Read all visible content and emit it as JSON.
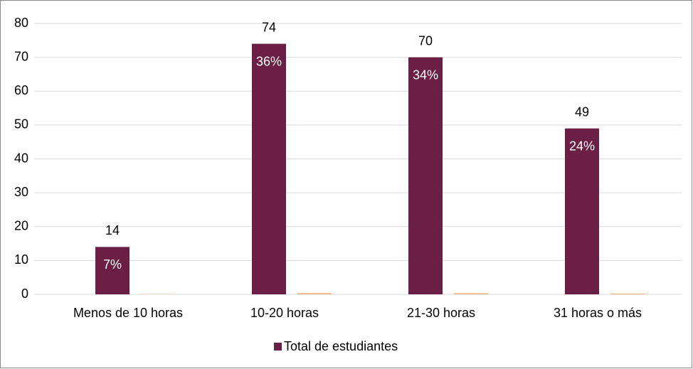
{
  "chart_data": {
    "type": "bar",
    "categories": [
      "Menos de 10 horas",
      "10-20 horas",
      "21-30 horas",
      "31 horas o más"
    ],
    "series": [
      {
        "name": "Total de estudiantes",
        "color": "#6b1f45",
        "values": [
          14,
          74,
          70,
          49
        ]
      },
      {
        "color": "#f4b183",
        "values": [
          0.07,
          0.36,
          0.34,
          0.24
        ],
        "value_labels": [
          "7%",
          "36%",
          "34%",
          "24%"
        ]
      }
    ],
    "ylim": [
      0,
      80
    ],
    "yticks": [
      0,
      10,
      20,
      30,
      40,
      50,
      60,
      70,
      80
    ],
    "grid": true,
    "legend": "bottom"
  }
}
